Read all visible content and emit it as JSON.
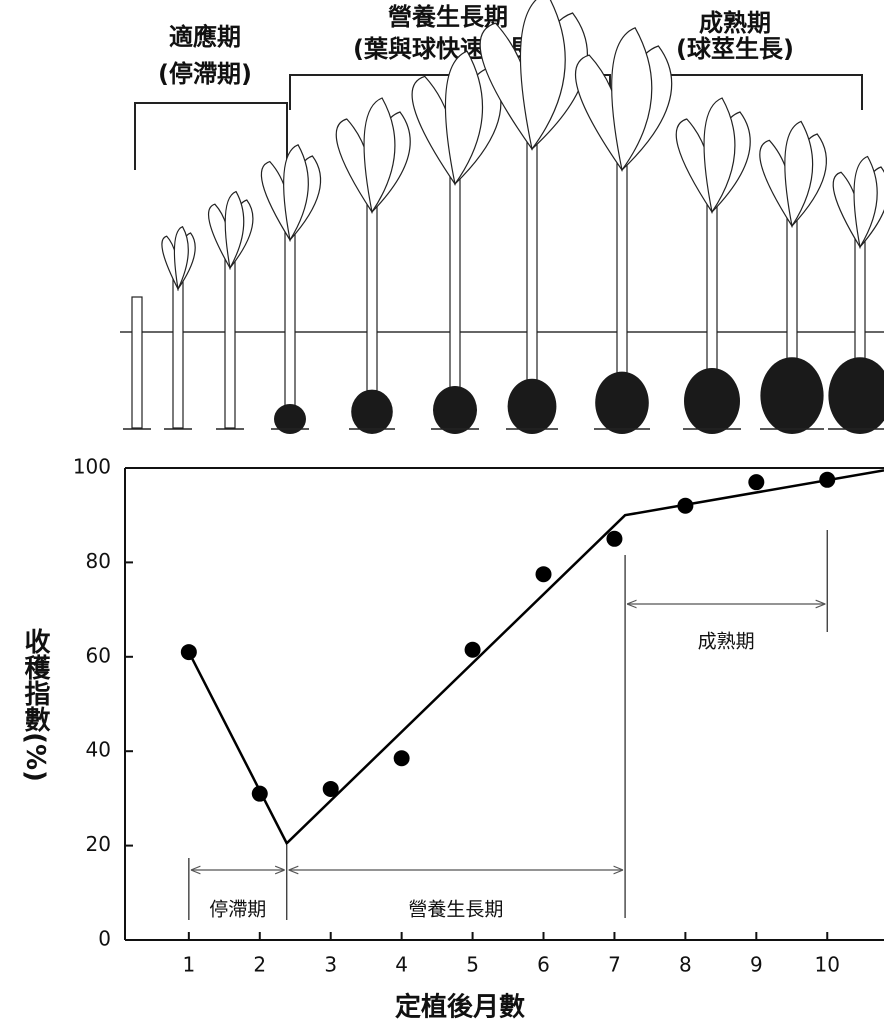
{
  "chart_data": {
    "type": "scatter",
    "stages": [
      {
        "name": "適應期",
        "note": "(停滯期)"
      },
      {
        "name": "營養生長期",
        "note": "(葉與球快速生長)"
      },
      {
        "name": "成熟期",
        "note": "(球莖生長)"
      }
    ],
    "xlabel": "定植後月數",
    "ylabel": "收穫指數(%)",
    "x": [
      1,
      2,
      3,
      4,
      5,
      6,
      7,
      8,
      9,
      10
    ],
    "values": [
      61,
      31,
      32,
      38.5,
      61.5,
      77.5,
      85,
      92,
      97,
      97.5
    ],
    "color": "#000000",
    "trend": {
      "x": [
        1,
        2.38,
        7.15,
        10.8
      ],
      "values": [
        61,
        20.5,
        90,
        99.5
      ]
    },
    "phases": [
      {
        "label": "停滯期",
        "start": 1,
        "end": 2.38
      },
      {
        "label": "營養生長期",
        "start": 2.38,
        "end": 7.15
      },
      {
        "label": "成熟期",
        "start": 7.15,
        "end": 10
      }
    ],
    "xlim": [
      0.1,
      10.8
    ],
    "ylim": [
      0,
      100
    ],
    "xticks": [
      1,
      2,
      3,
      4,
      5,
      6,
      7,
      8,
      9,
      10
    ],
    "yticks": [
      0,
      20,
      40,
      60,
      80,
      100
    ]
  }
}
